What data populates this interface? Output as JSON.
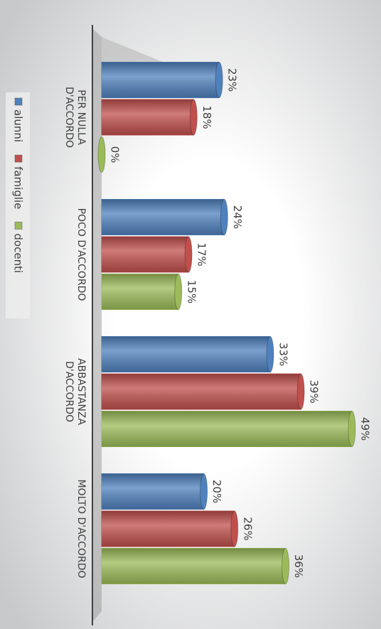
{
  "chart_data": {
    "type": "bar",
    "categories": [
      "PER NULLA D'ACCORDO",
      "POCO D'ACCORDO",
      "ABBASTANZA D'ACCORDO",
      "MOLTO D'ACCORDO"
    ],
    "series": [
      {
        "name": "alunni",
        "color": "#4f81bd",
        "values": [
          23,
          24,
          33,
          20
        ],
        "value_labels": [
          "23%",
          "24%",
          "33%",
          "20%"
        ]
      },
      {
        "name": "famiglie",
        "color": "#c0504d",
        "values": [
          18,
          17,
          39,
          26
        ],
        "value_labels": [
          "18%",
          "17%",
          "39%",
          "26%"
        ]
      },
      {
        "name": "docenti",
        "color": "#9bbb59",
        "values": [
          0,
          15,
          49,
          36
        ],
        "value_labels": [
          "0%",
          "15%",
          "49%",
          "36%"
        ]
      }
    ],
    "legend": "bottom"
  }
}
